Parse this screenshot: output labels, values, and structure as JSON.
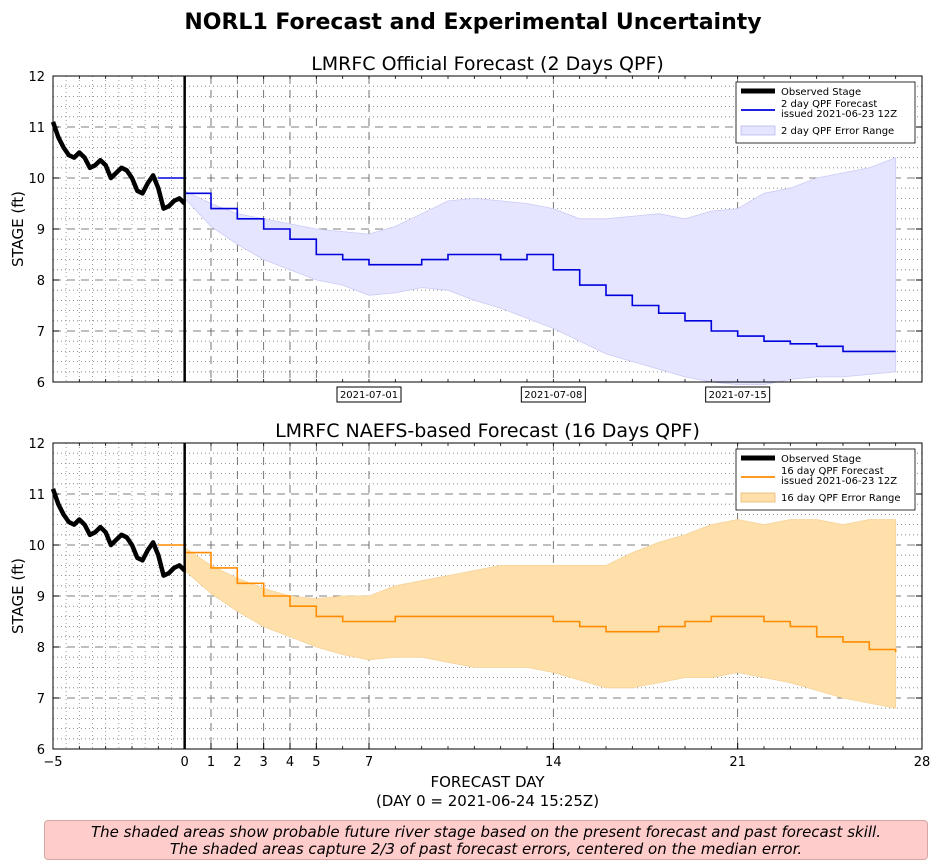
{
  "suptitle": "NORL1 Forecast and Experimental Uncertainty",
  "note": {
    "line1": "The shaded areas show probable future river stage based on the present forecast and past forecast skill.",
    "line2": "The shaded areas capture 2/3 of past forecast errors, centered on the median error."
  },
  "colors": {
    "observed": "#000000",
    "top_forecast": "#0000dd",
    "top_band": "#e5e5ff",
    "bottom_forecast": "#ff8c00",
    "bottom_band": "#ffe0aa",
    "note_bg": "#ffcccc"
  },
  "chart_data": [
    {
      "type": "line",
      "title": "LMRFC Official Forecast (2 Days QPF)",
      "ylabel": "STAGE (ft)",
      "xlabel": "",
      "xlim": [
        -5,
        28
      ],
      "ylim": [
        6,
        12
      ],
      "yticks": [
        6,
        7,
        8,
        9,
        10,
        11,
        12
      ],
      "date_ticks": [
        {
          "x": 7,
          "label": "2021-07-01"
        },
        {
          "x": 14,
          "label": "2021-07-08"
        },
        {
          "x": 21,
          "label": "2021-07-15"
        }
      ],
      "legend": {
        "position": "top-right",
        "entries": [
          {
            "label": "Observed Stage",
            "kind": "thick-line"
          },
          {
            "label": "2 day QPF Forecast",
            "label2": "issued 2021-06-23 12Z",
            "kind": "line"
          },
          {
            "label": "2 day QPF Error Range",
            "kind": "patch"
          }
        ]
      },
      "observed": {
        "x": [
          -5,
          -4.8,
          -4.6,
          -4.4,
          -4.2,
          -4.0,
          -3.8,
          -3.6,
          -3.4,
          -3.2,
          -3.0,
          -2.8,
          -2.6,
          -2.4,
          -2.2,
          -2.0,
          -1.8,
          -1.6,
          -1.4,
          -1.2,
          -1.0,
          -0.8,
          -0.6,
          -0.4,
          -0.2,
          0
        ],
        "y": [
          11.1,
          10.8,
          10.6,
          10.45,
          10.4,
          10.5,
          10.4,
          10.2,
          10.25,
          10.35,
          10.25,
          10.0,
          10.1,
          10.2,
          10.15,
          10.0,
          9.75,
          9.7,
          9.9,
          10.05,
          9.8,
          9.4,
          9.45,
          9.55,
          9.6,
          9.5
        ]
      },
      "forecast": {
        "x": [
          -1,
          0,
          1,
          2,
          3,
          4,
          5,
          6,
          7,
          8,
          9,
          10,
          11,
          12,
          13,
          14,
          15,
          16,
          17,
          18,
          19,
          20,
          21,
          22,
          23,
          24,
          25,
          26,
          27
        ],
        "y": [
          10.0,
          9.7,
          9.4,
          9.2,
          9.0,
          8.8,
          8.5,
          8.4,
          8.3,
          8.3,
          8.4,
          8.5,
          8.5,
          8.4,
          8.5,
          8.2,
          7.9,
          7.7,
          7.5,
          7.35,
          7.2,
          7.0,
          6.9,
          6.8,
          6.75,
          6.7,
          6.6,
          6.6,
          6.6
        ]
      },
      "band": {
        "x": [
          0,
          1,
          2,
          3,
          4,
          5,
          6,
          7,
          8,
          9,
          10,
          11,
          12,
          13,
          14,
          15,
          16,
          17,
          18,
          19,
          20,
          21,
          22,
          23,
          24,
          25,
          26,
          27
        ],
        "upper": [
          9.75,
          9.5,
          9.3,
          9.2,
          9.1,
          9.0,
          8.95,
          8.9,
          9.05,
          9.3,
          9.55,
          9.6,
          9.55,
          9.5,
          9.4,
          9.2,
          9.2,
          9.25,
          9.3,
          9.2,
          9.35,
          9.4,
          9.7,
          9.8,
          10.0,
          10.1,
          10.2,
          10.4
        ],
        "lower": [
          9.6,
          9.05,
          8.7,
          8.4,
          8.2,
          8.0,
          7.9,
          7.7,
          7.75,
          7.85,
          7.8,
          7.6,
          7.45,
          7.25,
          7.05,
          6.8,
          6.55,
          6.4,
          6.25,
          6.1,
          6.0,
          5.95,
          5.95,
          6.05,
          6.1,
          6.1,
          6.15,
          6.2
        ]
      }
    },
    {
      "type": "line",
      "title": "LMRFC NAEFS-based Forecast (16 Days QPF)",
      "ylabel": "STAGE (ft)",
      "xlabel": "FORECAST DAY",
      "xlabel2": "(DAY 0 = 2021-06-24 15:25Z)",
      "xlim": [
        -5,
        28
      ],
      "ylim": [
        6,
        12
      ],
      "yticks": [
        6,
        7,
        8,
        9,
        10,
        11,
        12
      ],
      "xticks": [
        -5,
        0,
        1,
        2,
        3,
        4,
        5,
        7,
        14,
        21,
        28
      ],
      "xtick_labels": [
        "−5",
        "0",
        "1",
        "2",
        "3",
        "4",
        "5",
        "7",
        "14",
        "21",
        "28"
      ],
      "legend": {
        "position": "top-right",
        "entries": [
          {
            "label": "Observed Stage",
            "kind": "thick-line"
          },
          {
            "label": "16 day QPF Forecast",
            "label2": "issued 2021-06-23 12Z",
            "kind": "line"
          },
          {
            "label": "16 day QPF Error Range",
            "kind": "patch"
          }
        ]
      },
      "observed": {
        "x": [
          -5,
          -4.8,
          -4.6,
          -4.4,
          -4.2,
          -4.0,
          -3.8,
          -3.6,
          -3.4,
          -3.2,
          -3.0,
          -2.8,
          -2.6,
          -2.4,
          -2.2,
          -2.0,
          -1.8,
          -1.6,
          -1.4,
          -1.2,
          -1.0,
          -0.8,
          -0.6,
          -0.4,
          -0.2,
          0
        ],
        "y": [
          11.1,
          10.8,
          10.6,
          10.45,
          10.4,
          10.5,
          10.4,
          10.2,
          10.25,
          10.35,
          10.25,
          10.0,
          10.1,
          10.2,
          10.15,
          10.0,
          9.75,
          9.7,
          9.9,
          10.05,
          9.8,
          9.4,
          9.45,
          9.55,
          9.6,
          9.5
        ]
      },
      "forecast": {
        "x": [
          -1,
          0,
          1,
          2,
          3,
          4,
          5,
          6,
          7,
          8,
          9,
          10,
          11,
          12,
          13,
          14,
          15,
          16,
          17,
          18,
          19,
          20,
          21,
          22,
          23,
          24,
          25,
          26,
          27
        ],
        "y": [
          10.0,
          9.85,
          9.55,
          9.25,
          9.0,
          8.8,
          8.6,
          8.5,
          8.5,
          8.6,
          8.6,
          8.6,
          8.6,
          8.6,
          8.6,
          8.5,
          8.4,
          8.3,
          8.3,
          8.4,
          8.5,
          8.6,
          8.6,
          8.5,
          8.4,
          8.2,
          8.1,
          7.95,
          7.9
        ]
      },
      "band": {
        "x": [
          0,
          1,
          2,
          3,
          4,
          5,
          6,
          7,
          8,
          9,
          10,
          11,
          12,
          13,
          14,
          15,
          16,
          17,
          18,
          19,
          20,
          21,
          22,
          23,
          24,
          25,
          26,
          27
        ],
        "upper": [
          9.95,
          9.6,
          9.35,
          9.15,
          9.0,
          8.95,
          9.0,
          9.0,
          9.2,
          9.3,
          9.4,
          9.5,
          9.6,
          9.6,
          9.6,
          9.6,
          9.6,
          9.85,
          10.05,
          10.2,
          10.4,
          10.5,
          10.4,
          10.5,
          10.5,
          10.4,
          10.5,
          10.5
        ],
        "lower": [
          9.5,
          9.05,
          8.7,
          8.4,
          8.2,
          8.0,
          7.85,
          7.75,
          7.8,
          7.8,
          7.7,
          7.6,
          7.6,
          7.6,
          7.5,
          7.35,
          7.2,
          7.2,
          7.3,
          7.4,
          7.4,
          7.5,
          7.4,
          7.3,
          7.15,
          7.0,
          6.9,
          6.8
        ]
      }
    }
  ]
}
